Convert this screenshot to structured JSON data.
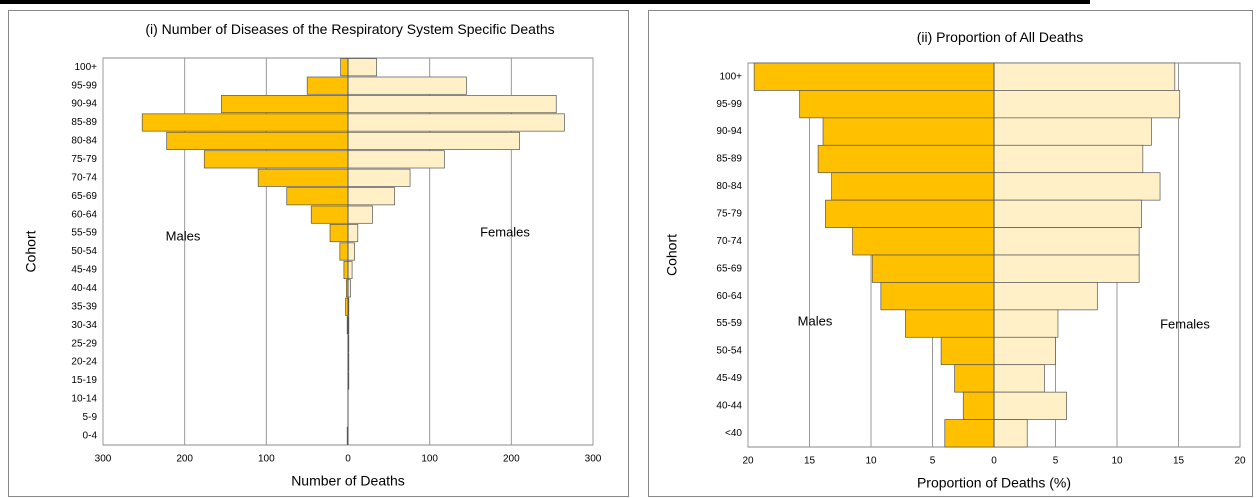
{
  "chart_data": [
    {
      "type": "pyramid",
      "title": "(i) Number of Diseases of the Respiratory System Specific Deaths",
      "x_label": "Number of Deaths",
      "y_label": "Cohort",
      "categories": [
        "100+",
        "95-99",
        "90-94",
        "85-89",
        "80-84",
        "75-79",
        "70-74",
        "65-69",
        "60-64",
        "55-59",
        "50-54",
        "45-49",
        "40-44",
        "35-39",
        "30-34",
        "25-29",
        "20-24",
        "15-19",
        "10-14",
        "5-9",
        "0-4"
      ],
      "series": [
        {
          "name": "Males",
          "color": "#ffc000",
          "values": [
            9,
            50,
            155,
            252,
            222,
            176,
            110,
            75,
            45,
            22,
            10,
            5,
            2,
            3,
            1,
            0,
            0,
            0,
            0,
            0,
            1
          ]
        },
        {
          "name": "Females",
          "color": "#fff0c8",
          "values": [
            35,
            145,
            255,
            265,
            210,
            118,
            76,
            57,
            30,
            12,
            8,
            5,
            3,
            1,
            1,
            1,
            1,
            1,
            0,
            0,
            0
          ]
        }
      ],
      "xlim": [
        -300,
        300
      ],
      "xticks": [
        {
          "value": -300,
          "label": "300"
        },
        {
          "value": -200,
          "label": "200"
        },
        {
          "value": -100,
          "label": "100"
        },
        0,
        100,
        200,
        300
      ],
      "grid": true
    },
    {
      "type": "pyramid",
      "title": "(ii) Proportion of All Deaths",
      "x_label": "Proportion of Deaths (%)",
      "y_label": "Cohort",
      "categories": [
        "100+",
        "95-99",
        "90-94",
        "85-89",
        "80-84",
        "75-79",
        "70-74",
        "65-69",
        "60-64",
        "55-59",
        "50-54",
        "45-49",
        "40-44",
        "<40"
      ],
      "series": [
        {
          "name": "Males",
          "color": "#ffc000",
          "values": [
            19.5,
            15.8,
            13.9,
            14.3,
            13.2,
            13.7,
            11.5,
            9.9,
            9.2,
            7.2,
            4.3,
            3.2,
            2.5,
            4.0
          ]
        },
        {
          "name": "Females",
          "color": "#fff0c8",
          "values": [
            14.7,
            15.1,
            12.8,
            12.1,
            13.5,
            12.0,
            11.8,
            11.8,
            8.4,
            5.2,
            5.0,
            4.1,
            5.9,
            2.7
          ]
        }
      ],
      "xlim": [
        -20,
        20
      ],
      "xticks": [
        {
          "value": -20,
          "label": "20"
        },
        {
          "value": -15,
          "label": "15"
        },
        {
          "value": -10,
          "label": "10"
        },
        {
          "value": -5,
          "label": "5"
        },
        0,
        5,
        10,
        15,
        20
      ],
      "grid": true
    }
  ]
}
